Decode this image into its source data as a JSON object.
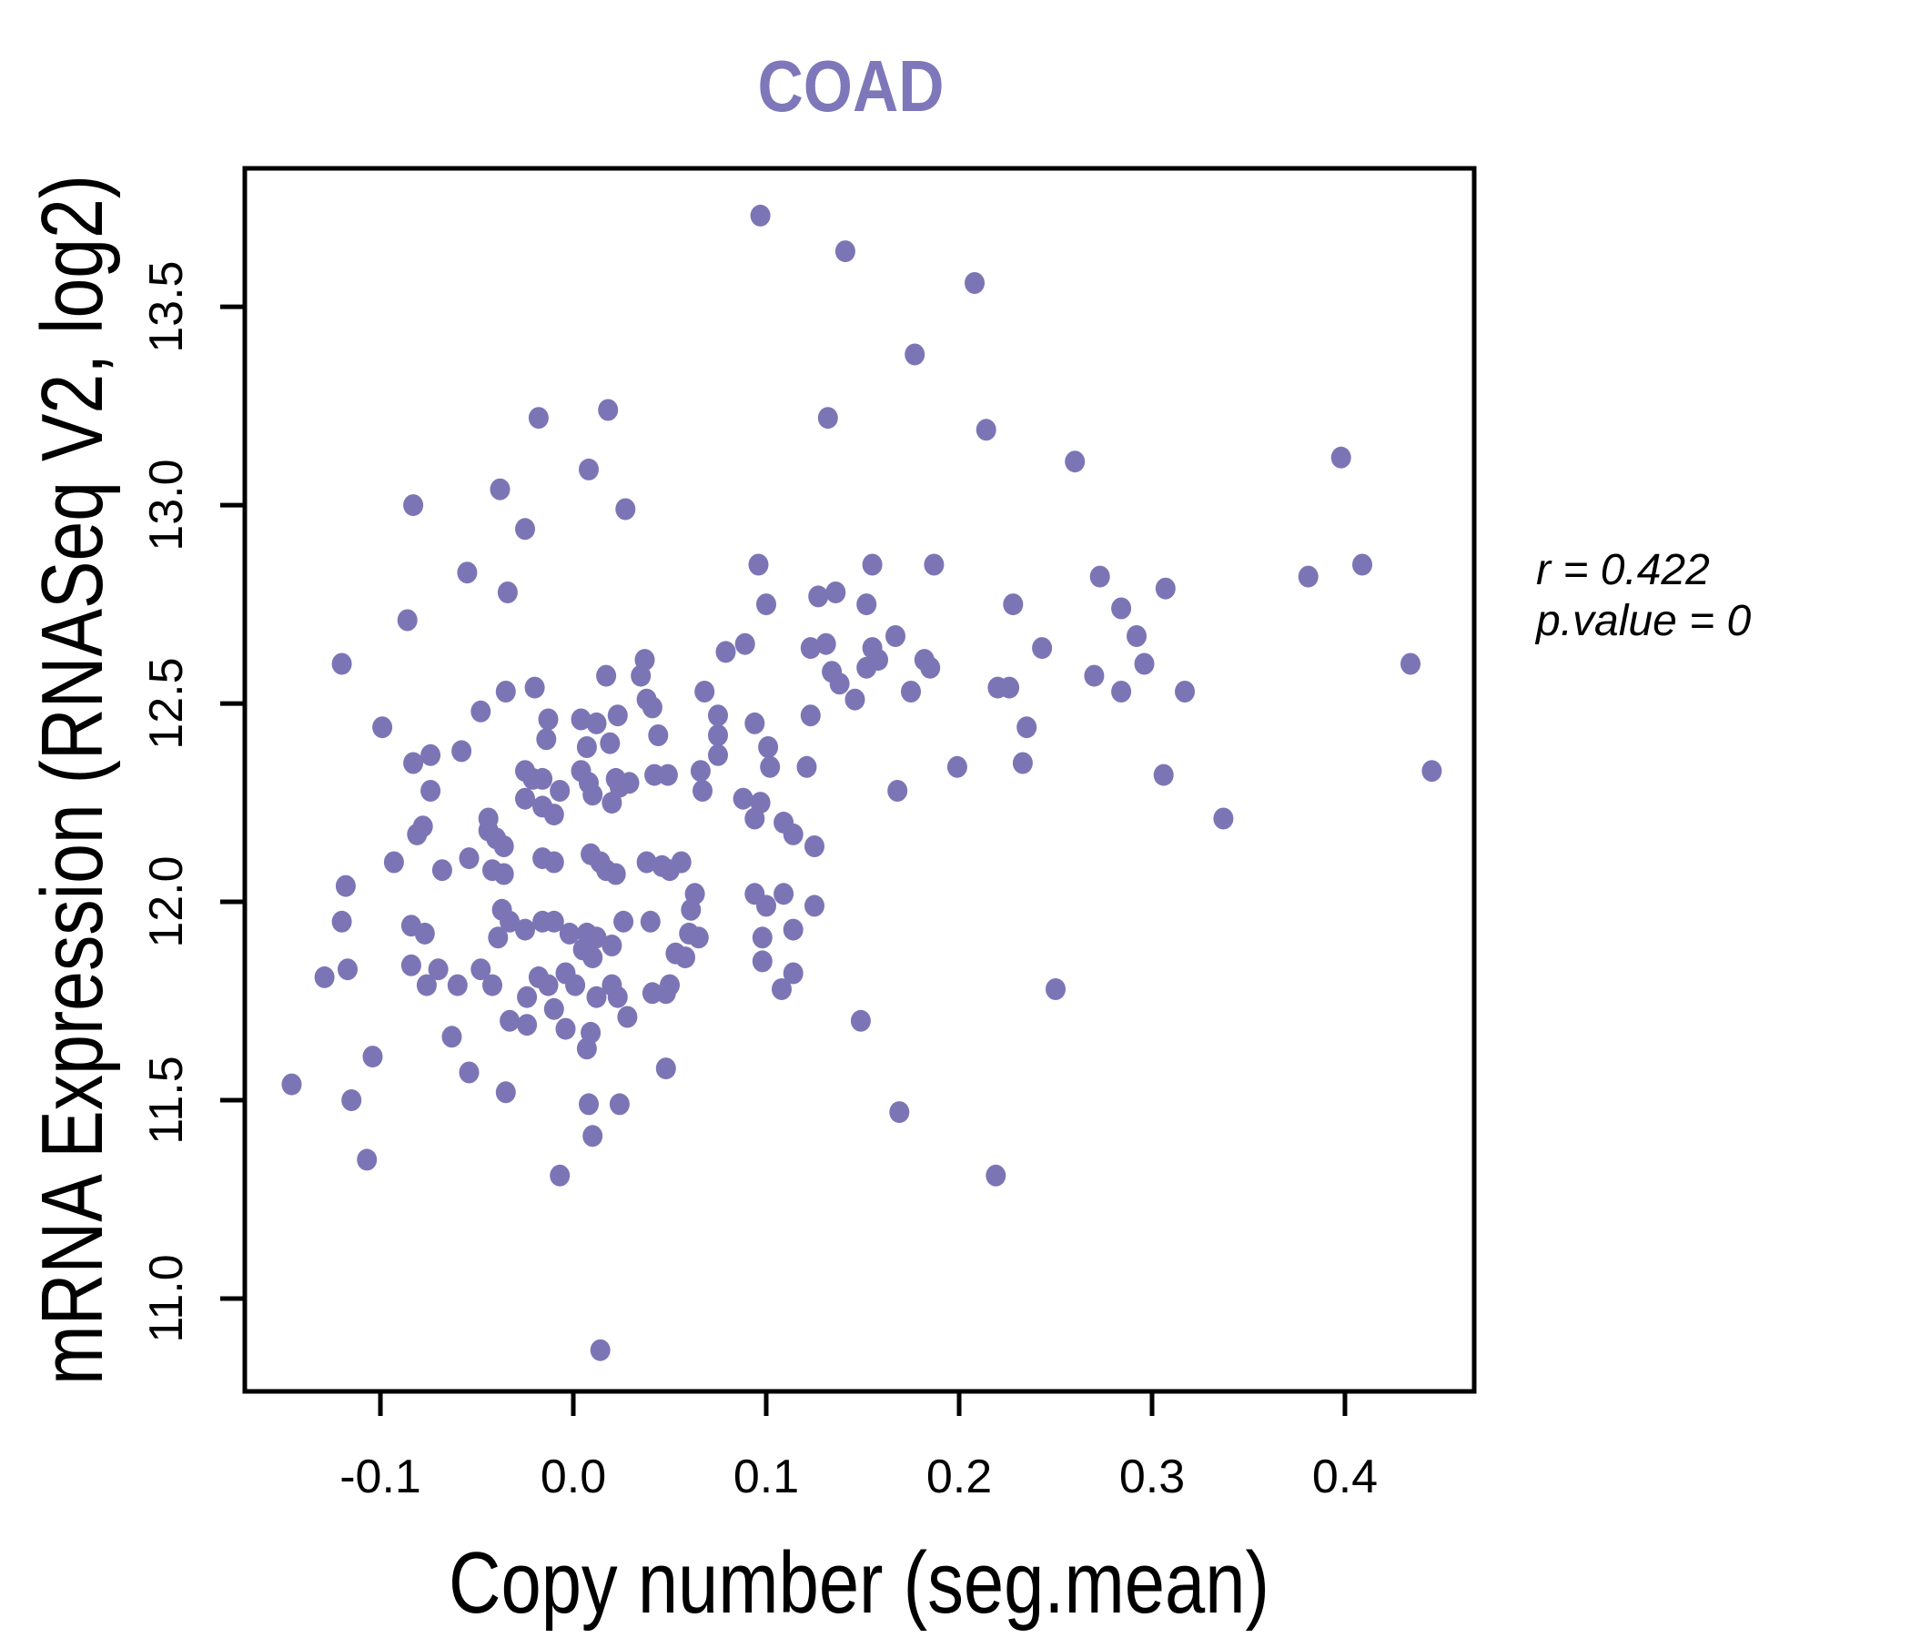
{
  "title": "COAD",
  "annotation": {
    "r_label": "r = 0.422",
    "p_label": "p.value = 0"
  },
  "colors": {
    "point": "#7c75b5",
    "title": "#7e77ba",
    "axis": "#000000",
    "background": "#ffffff"
  },
  "chart_data": {
    "type": "scatter",
    "title": "COAD",
    "xlabel": "Copy number (seg.mean)",
    "ylabel": "mRNA Expression (RNASeq V2, log2)",
    "xlim": [
      -0.1703,
      0.467
    ],
    "ylim": [
      10.766,
      13.849
    ],
    "grid": false,
    "legend": "none",
    "stats": {
      "r": 0.422,
      "p_value": 0
    },
    "x_ticks": [
      {
        "value": -0.1,
        "label": "-0.1"
      },
      {
        "value": 0.0,
        "label": "0.0"
      },
      {
        "value": 0.1,
        "label": "0.1"
      },
      {
        "value": 0.2,
        "label": "0.2"
      },
      {
        "value": 0.3,
        "label": "0.3"
      },
      {
        "value": 0.4,
        "label": "0.4"
      }
    ],
    "y_ticks": [
      {
        "value": 11.0,
        "label": "11.0"
      },
      {
        "value": 11.5,
        "label": "11.5"
      },
      {
        "value": 12.0,
        "label": "12.0"
      },
      {
        "value": 12.5,
        "label": "12.5"
      },
      {
        "value": 13.0,
        "label": "13.0"
      },
      {
        "value": 13.5,
        "label": "13.5"
      }
    ],
    "points": [
      [
        0.097,
        13.73
      ],
      [
        0.141,
        13.64
      ],
      [
        -0.018,
        13.22
      ],
      [
        0.018,
        13.24
      ],
      [
        0.132,
        13.22
      ],
      [
        0.008,
        13.09
      ],
      [
        -0.038,
        13.04
      ],
      [
        -0.083,
        13.0
      ],
      [
        0.027,
        12.99
      ],
      [
        -0.025,
        12.94
      ],
      [
        -0.055,
        12.83
      ],
      [
        0.096,
        12.85
      ],
      [
        0.208,
        13.56
      ],
      [
        0.177,
        13.38
      ],
      [
        0.214,
        13.19
      ],
      [
        0.26,
        13.11
      ],
      [
        0.398,
        13.12
      ],
      [
        0.155,
        12.85
      ],
      [
        0.187,
        12.85
      ],
      [
        0.273,
        12.82
      ],
      [
        0.381,
        12.82
      ],
      [
        0.409,
        12.85
      ],
      [
        -0.034,
        12.78
      ],
      [
        -0.086,
        12.71
      ],
      [
        0.1,
        12.75
      ],
      [
        0.127,
        12.77
      ],
      [
        0.136,
        12.78
      ],
      [
        -0.12,
        12.6
      ],
      [
        0.037,
        12.61
      ],
      [
        0.035,
        12.57
      ],
      [
        0.017,
        12.57
      ],
      [
        -0.035,
        12.53
      ],
      [
        -0.02,
        12.54
      ],
      [
        0.068,
        12.53
      ],
      [
        0.079,
        12.63
      ],
      [
        0.089,
        12.65
      ],
      [
        0.123,
        12.64
      ],
      [
        0.131,
        12.65
      ],
      [
        0.134,
        12.58
      ],
      [
        0.138,
        12.55
      ],
      [
        0.146,
        12.51
      ],
      [
        -0.048,
        12.48
      ],
      [
        -0.099,
        12.44
      ],
      [
        0.038,
        12.51
      ],
      [
        0.041,
        12.49
      ],
      [
        -0.013,
        12.46
      ],
      [
        -0.014,
        12.41
      ],
      [
        0.004,
        12.46
      ],
      [
        0.012,
        12.45
      ],
      [
        0.023,
        12.47
      ],
      [
        0.019,
        12.4
      ],
      [
        0.007,
        12.39
      ],
      [
        0.044,
        12.42
      ],
      [
        0.075,
        12.47
      ],
      [
        0.075,
        12.42
      ],
      [
        0.075,
        12.37
      ],
      [
        0.094,
        12.45
      ],
      [
        0.101,
        12.39
      ],
      [
        0.102,
        12.34
      ],
      [
        0.123,
        12.47
      ],
      [
        -0.058,
        12.38
      ],
      [
        -0.074,
        12.37
      ],
      [
        -0.083,
        12.35
      ],
      [
        -0.074,
        12.28
      ],
      [
        -0.044,
        12.21
      ],
      [
        -0.025,
        12.33
      ],
      [
        -0.021,
        12.31
      ],
      [
        -0.016,
        12.31
      ],
      [
        -0.025,
        12.26
      ],
      [
        -0.016,
        12.24
      ],
      [
        -0.01,
        12.22
      ],
      [
        -0.007,
        12.28
      ],
      [
        0.004,
        12.33
      ],
      [
        0.008,
        12.3
      ],
      [
        0.01,
        12.27
      ],
      [
        0.022,
        12.31
      ],
      [
        0.024,
        12.29
      ],
      [
        0.02,
        12.25
      ],
      [
        0.029,
        12.3
      ],
      [
        0.042,
        12.32
      ],
      [
        0.049,
        12.32
      ],
      [
        0.066,
        12.33
      ],
      [
        0.067,
        12.28
      ],
      [
        0.088,
        12.26
      ],
      [
        0.094,
        12.21
      ],
      [
        0.097,
        12.25
      ],
      [
        0.109,
        12.2
      ],
      [
        0.114,
        12.17
      ],
      [
        0.125,
        12.14
      ],
      [
        0.121,
        12.34
      ],
      [
        -0.044,
        12.18
      ],
      [
        -0.04,
        12.16
      ],
      [
        -0.036,
        12.14
      ],
      [
        -0.078,
        12.19
      ],
      [
        -0.081,
        12.17
      ],
      [
        -0.093,
        12.1
      ],
      [
        -0.118,
        12.04
      ],
      [
        -0.068,
        12.08
      ],
      [
        -0.054,
        12.11
      ],
      [
        -0.042,
        12.08
      ],
      [
        -0.036,
        12.07
      ],
      [
        -0.016,
        12.11
      ],
      [
        -0.01,
        12.1
      ],
      [
        0.009,
        12.12
      ],
      [
        0.014,
        12.1
      ],
      [
        0.017,
        12.08
      ],
      [
        0.022,
        12.07
      ],
      [
        0.038,
        12.1
      ],
      [
        0.046,
        12.09
      ],
      [
        0.05,
        12.08
      ],
      [
        0.056,
        12.1
      ],
      [
        0.063,
        12.02
      ],
      [
        0.061,
        11.98
      ],
      [
        0.094,
        12.02
      ],
      [
        0.1,
        11.99
      ],
      [
        0.109,
        12.02
      ],
      [
        0.125,
        11.99
      ],
      [
        -0.12,
        11.95
      ],
      [
        -0.117,
        11.83
      ],
      [
        -0.084,
        11.94
      ],
      [
        -0.077,
        11.92
      ],
      [
        -0.084,
        11.84
      ],
      [
        -0.07,
        11.83
      ],
      [
        -0.037,
        11.98
      ],
      [
        -0.033,
        11.95
      ],
      [
        -0.039,
        11.91
      ],
      [
        -0.025,
        11.93
      ],
      [
        -0.016,
        11.95
      ],
      [
        -0.01,
        11.95
      ],
      [
        -0.002,
        11.92
      ],
      [
        0.007,
        11.92
      ],
      [
        0.012,
        11.91
      ],
      [
        0.005,
        11.88
      ],
      [
        0.01,
        11.86
      ],
      [
        0.02,
        11.89
      ],
      [
        0.026,
        11.95
      ],
      [
        0.04,
        11.95
      ],
      [
        0.06,
        11.92
      ],
      [
        0.065,
        11.91
      ],
      [
        0.098,
        11.91
      ],
      [
        0.114,
        11.93
      ],
      [
        -0.076,
        11.79
      ],
      [
        -0.06,
        11.79
      ],
      [
        -0.048,
        11.83
      ],
      [
        -0.042,
        11.79
      ],
      [
        -0.018,
        11.81
      ],
      [
        -0.013,
        11.79
      ],
      [
        -0.004,
        11.82
      ],
      [
        0.001,
        11.79
      ],
      [
        0.02,
        11.79
      ],
      [
        0.053,
        11.87
      ],
      [
        0.058,
        11.86
      ],
      [
        0.05,
        11.79
      ],
      [
        0.098,
        11.85
      ],
      [
        0.114,
        11.82
      ],
      [
        -0.129,
        11.81
      ],
      [
        0.307,
        12.79
      ],
      [
        0.228,
        12.75
      ],
      [
        0.284,
        12.74
      ],
      [
        0.152,
        12.75
      ],
      [
        0.167,
        12.67
      ],
      [
        0.155,
        12.64
      ],
      [
        0.158,
        12.61
      ],
      [
        0.152,
        12.59
      ],
      [
        0.182,
        12.61
      ],
      [
        0.185,
        12.59
      ],
      [
        0.243,
        12.64
      ],
      [
        0.292,
        12.67
      ],
      [
        0.296,
        12.6
      ],
      [
        0.175,
        12.53
      ],
      [
        0.22,
        12.54
      ],
      [
        0.226,
        12.54
      ],
      [
        0.27,
        12.57
      ],
      [
        0.284,
        12.53
      ],
      [
        0.317,
        12.53
      ],
      [
        0.434,
        12.6
      ],
      [
        0.235,
        12.44
      ],
      [
        0.199,
        12.34
      ],
      [
        0.233,
        12.35
      ],
      [
        0.168,
        12.28
      ],
      [
        0.306,
        12.32
      ],
      [
        0.445,
        12.33
      ],
      [
        0.337,
        12.21
      ],
      [
        -0.024,
        11.76
      ],
      [
        -0.01,
        11.73
      ],
      [
        0.012,
        11.76
      ],
      [
        0.023,
        11.76
      ],
      [
        0.041,
        11.77
      ],
      [
        0.048,
        11.77
      ],
      [
        -0.033,
        11.7
      ],
      [
        -0.024,
        11.69
      ],
      [
        -0.004,
        11.68
      ],
      [
        0.009,
        11.67
      ],
      [
        0.007,
        11.63
      ],
      [
        0.028,
        11.71
      ],
      [
        0.108,
        11.78
      ],
      [
        0.149,
        11.7
      ],
      [
        -0.063,
        11.66
      ],
      [
        -0.104,
        11.61
      ],
      [
        -0.054,
        11.57
      ],
      [
        -0.146,
        11.54
      ],
      [
        -0.115,
        11.5
      ],
      [
        -0.035,
        11.52
      ],
      [
        0.008,
        11.49
      ],
      [
        0.024,
        11.49
      ],
      [
        0.048,
        11.58
      ],
      [
        0.01,
        11.41
      ],
      [
        -0.107,
        11.35
      ],
      [
        -0.007,
        11.31
      ],
      [
        0.014,
        10.87
      ],
      [
        0.25,
        11.78
      ],
      [
        0.169,
        11.47
      ],
      [
        0.219,
        11.31
      ]
    ]
  }
}
